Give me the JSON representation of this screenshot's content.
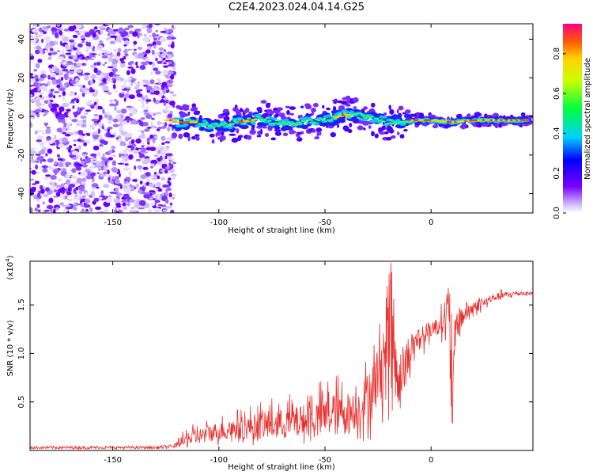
{
  "title": "C2E4.2023.024.04.14.G25",
  "colors": {
    "axis": "#000000",
    "snr_line": "#e8312f",
    "background": "#ffffff"
  },
  "chart_data": [
    {
      "type": "heatmap",
      "title": "C2E4.2023.024.04.14.G25",
      "xlabel": "Height of straight line (km)",
      "ylabel": "Frequency (Hz)",
      "xlim": [
        -189,
        48
      ],
      "ylim": [
        -50,
        48
      ],
      "xticks": [
        -150,
        -100,
        -50,
        0
      ],
      "xtick_labels": [
        "-150",
        "-100",
        "-50",
        "0"
      ],
      "yticks": [
        -40,
        -20,
        0,
        20,
        40
      ],
      "ytick_labels": [
        "-40",
        "-20",
        "0",
        "20",
        "40"
      ],
      "grid": false,
      "noise_region_x": [
        -189,
        -121
      ],
      "ridge_center_hz": [
        [
          -120,
          -3
        ],
        [
          -110,
          -3
        ],
        [
          -100,
          -5
        ],
        [
          -90,
          -3
        ],
        [
          -80,
          -1
        ],
        [
          -70,
          -4
        ],
        [
          -60,
          -3
        ],
        [
          -50,
          -2
        ],
        [
          -40,
          1
        ],
        [
          -30,
          0
        ],
        [
          -20,
          -3
        ],
        [
          -10,
          -2
        ],
        [
          0,
          -2
        ],
        [
          10,
          -3
        ],
        [
          20,
          -2
        ],
        [
          30,
          -2
        ],
        [
          45,
          -2
        ]
      ],
      "colorbar": {
        "label": "Normalized spectral amplitude",
        "range": [
          0.0,
          0.95
        ],
        "ticks": [
          0.0,
          0.2,
          0.4,
          0.6,
          0.8
        ],
        "tick_labels": [
          "0.0",
          "0.2",
          "0.4",
          "0.6",
          "0.8"
        ],
        "colormap": "rainbow"
      }
    },
    {
      "type": "line",
      "xlabel": "Height of straight line (km)",
      "ylabel": "SNR (10 * v/v)",
      "ylabel_scale": "(x10",
      "ylabel_scale_exp": "4",
      "ylabel_scale_close": ")",
      "xlim": [
        -189,
        48
      ],
      "ylim": [
        0,
        1.95
      ],
      "xticks": [
        -150,
        -100,
        -50,
        0
      ],
      "xtick_labels": [
        "-150",
        "-100",
        "-50",
        "0"
      ],
      "yticks": [
        0.5,
        1.0,
        1.5
      ],
      "ytick_labels": [
        "0.5",
        "1.0",
        "1.5"
      ],
      "grid": false,
      "series": [
        {
          "color": "#e8312f",
          "x": [
            -189,
            -160,
            -130,
            -122,
            -115,
            -105,
            -95,
            -85,
            -75,
            -65,
            -55,
            -45,
            -35,
            -28,
            -22,
            -19,
            -17,
            -14,
            -11,
            -7,
            -3,
            0,
            4,
            8,
            10,
            12,
            15,
            20,
            25,
            30,
            35,
            40,
            48
          ],
          "y": [
            0.03,
            0.03,
            0.03,
            0.04,
            0.1,
            0.18,
            0.22,
            0.24,
            0.26,
            0.28,
            0.32,
            0.36,
            0.42,
            0.6,
            1.0,
            1.95,
            0.9,
            0.8,
            1.0,
            1.15,
            1.2,
            1.25,
            1.3,
            1.45,
            0.35,
            1.3,
            1.4,
            1.48,
            1.52,
            1.58,
            1.6,
            1.62,
            1.62
          ],
          "envelope_low": [
            0.01,
            0.01,
            0.01,
            0.02,
            0.02,
            0.04,
            0.05,
            0.05,
            0.06,
            0.06,
            0.07,
            0.08,
            0.08,
            0.1,
            0.3,
            0.3,
            0.2,
            0.3,
            0.6,
            0.9,
            1.0,
            1.1,
            1.15,
            1.0,
            0.24,
            1.0,
            1.2,
            1.35,
            1.45,
            1.52,
            1.55,
            1.58,
            1.6
          ],
          "envelope_high": [
            0.04,
            0.04,
            0.04,
            0.06,
            0.25,
            0.33,
            0.4,
            0.48,
            0.55,
            0.6,
            0.7,
            0.8,
            0.75,
            1.1,
            1.5,
            1.95,
            1.5,
            1.1,
            1.2,
            1.3,
            1.35,
            1.4,
            1.45,
            1.79,
            1.7,
            1.6,
            1.55,
            1.58,
            1.62,
            1.66,
            1.66,
            1.65,
            1.65
          ]
        }
      ]
    }
  ]
}
